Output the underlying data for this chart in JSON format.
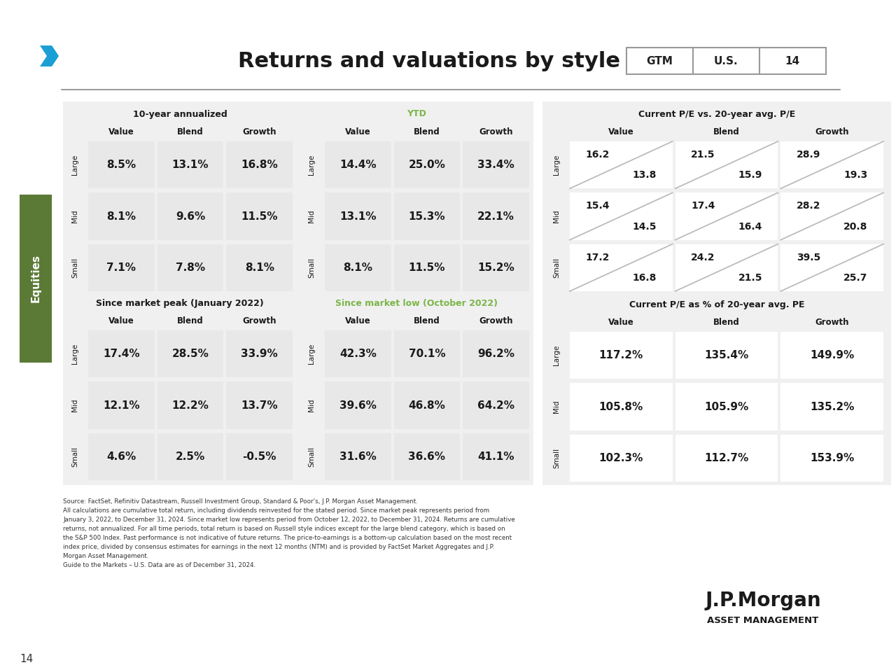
{
  "title": "Returns and valuations by style",
  "badge": [
    "GTM",
    "U.S.",
    "14"
  ],
  "sections": {
    "ten_year": {
      "label": "10-year annualized",
      "label_color": "#1a1a1a",
      "cols": [
        "Value",
        "Blend",
        "Growth"
      ],
      "rows": [
        "Large",
        "Mid",
        "Small"
      ],
      "data": [
        [
          "8.5%",
          "13.1%",
          "16.8%"
        ],
        [
          "8.1%",
          "9.6%",
          "11.5%"
        ],
        [
          "7.1%",
          "7.8%",
          "8.1%"
        ]
      ]
    },
    "ytd": {
      "label": "YTD",
      "label_color": "#7ab648",
      "cols": [
        "Value",
        "Blend",
        "Growth"
      ],
      "rows": [
        "Large",
        "Mid",
        "Small"
      ],
      "data": [
        [
          "14.4%",
          "25.0%",
          "33.4%"
        ],
        [
          "13.1%",
          "15.3%",
          "22.1%"
        ],
        [
          "8.1%",
          "11.5%",
          "15.2%"
        ]
      ]
    },
    "market_peak": {
      "label": "Since market peak (January 2022)",
      "label_color": "#1a1a1a",
      "cols": [
        "Value",
        "Blend",
        "Growth"
      ],
      "rows": [
        "Large",
        "Mid",
        "Small"
      ],
      "data": [
        [
          "17.4%",
          "28.5%",
          "33.9%"
        ],
        [
          "12.1%",
          "12.2%",
          "13.7%"
        ],
        [
          "4.6%",
          "2.5%",
          "-0.5%"
        ]
      ]
    },
    "market_low": {
      "label": "Since market low (October 2022)",
      "label_color": "#7ab648",
      "cols": [
        "Value",
        "Blend",
        "Growth"
      ],
      "rows": [
        "Large",
        "Mid",
        "Small"
      ],
      "data": [
        [
          "42.3%",
          "70.1%",
          "96.2%"
        ],
        [
          "39.6%",
          "46.8%",
          "64.2%"
        ],
        [
          "31.6%",
          "36.6%",
          "41.1%"
        ]
      ]
    },
    "pe_current": {
      "label": "Current P/E vs. 20-year avg. P/E",
      "label_color": "#1a1a1a",
      "cols": [
        "Value",
        "Blend",
        "Growth"
      ],
      "rows": [
        "Large",
        "Mid",
        "Small"
      ],
      "current": [
        [
          "16.2",
          "21.5",
          "28.9"
        ],
        [
          "15.4",
          "17.4",
          "28.2"
        ],
        [
          "17.2",
          "24.2",
          "39.5"
        ]
      ],
      "avg": [
        [
          "13.8",
          "15.9",
          "19.3"
        ],
        [
          "14.5",
          "16.4",
          "20.8"
        ],
        [
          "16.8",
          "21.5",
          "25.7"
        ]
      ]
    },
    "pe_pct": {
      "label": "Current P/E as % of 20-year avg. PE",
      "label_color": "#1a1a1a",
      "cols": [
        "Value",
        "Blend",
        "Growth"
      ],
      "rows": [
        "Large",
        "Mid",
        "Small"
      ],
      "data": [
        [
          "117.2%",
          "135.4%",
          "149.9%"
        ],
        [
          "105.8%",
          "105.9%",
          "135.2%"
        ],
        [
          "102.3%",
          "112.7%",
          "153.9%"
        ]
      ]
    }
  },
  "footnote_lines": [
    "Source: FactSet, Refinitiv Datastream, Russell Investment Group, Standard & Poor's, J.P. Morgan Asset Management.",
    "All calculations are cumulative total return, including dividends reinvested for the stated period. Since market peak represents period from",
    "January 3, 2022, to December 31, 2024. Since market low represents period from October 12, 2022, to December 31, 2024. Returns are cumulative",
    "returns, not annualized. For all time periods, total return is based on Russell style indices except for the large blend category, which is based on",
    "the S&P 500 Index. Past performance is not indicative of future returns. The price-to-earnings is a bottom-up calculation based on the most recent",
    "index price, divided by consensus estimates for earnings in the next 12 months (NTM) and is provided by FactSet Market Aggregates and J.P.",
    "Morgan Asset Management.",
    "Guide to the Markets – U.S. Data are as of December 31, 2024."
  ]
}
